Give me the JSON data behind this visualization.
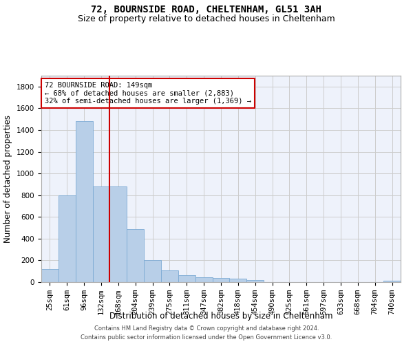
{
  "title_line1": "72, BOURNSIDE ROAD, CHELTENHAM, GL51 3AH",
  "title_line2": "Size of property relative to detached houses in Cheltenham",
  "xlabel": "Distribution of detached houses by size in Cheltenham",
  "ylabel": "Number of detached properties",
  "footer_line1": "Contains HM Land Registry data © Crown copyright and database right 2024.",
  "footer_line2": "Contains public sector information licensed under the Open Government Licence v3.0.",
  "categories": [
    "25sqm",
    "61sqm",
    "96sqm",
    "132sqm",
    "168sqm",
    "204sqm",
    "239sqm",
    "275sqm",
    "311sqm",
    "347sqm",
    "382sqm",
    "418sqm",
    "454sqm",
    "490sqm",
    "525sqm",
    "561sqm",
    "597sqm",
    "633sqm",
    "668sqm",
    "704sqm",
    "740sqm"
  ],
  "values": [
    120,
    800,
    1480,
    880,
    880,
    490,
    205,
    105,
    65,
    45,
    35,
    30,
    20,
    0,
    0,
    0,
    0,
    0,
    0,
    0,
    15
  ],
  "bar_color": "#b8cfe8",
  "bar_edge_color": "#7baad4",
  "property_line_x": 3.5,
  "property_line_color": "#cc0000",
  "annotation_title": "72 BOURNSIDE ROAD: 149sqm",
  "annotation_line1": "← 68% of detached houses are smaller (2,883)",
  "annotation_line2": "32% of semi-detached houses are larger (1,369) →",
  "annotation_box_facecolor": "#ffffff",
  "annotation_box_edgecolor": "#cc0000",
  "ylim": [
    0,
    1900
  ],
  "yticks": [
    0,
    200,
    400,
    600,
    800,
    1000,
    1200,
    1400,
    1600,
    1800
  ],
  "grid_color": "#cccccc",
  "bg_color": "#eef2fb",
  "title_fontsize": 10,
  "subtitle_fontsize": 9,
  "axis_label_fontsize": 8.5,
  "tick_fontsize": 7.5,
  "annotation_fontsize": 7.5,
  "footer_fontsize": 6
}
